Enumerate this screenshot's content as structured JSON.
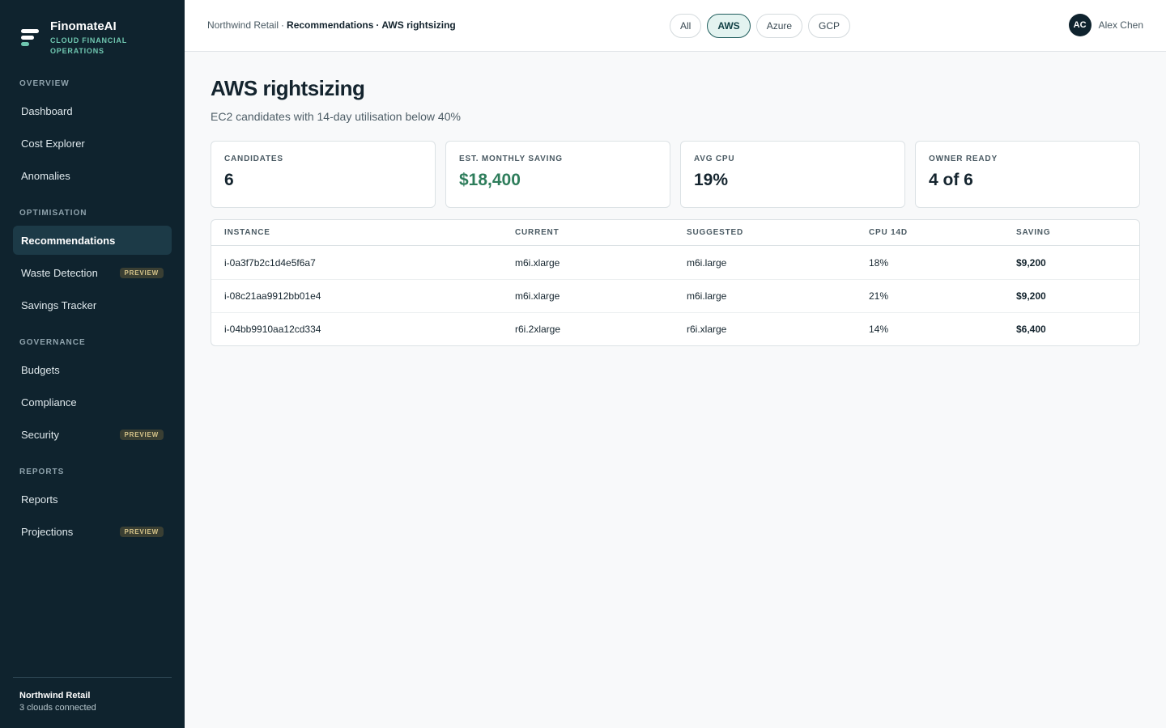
{
  "brand": {
    "name": "FinomateAI",
    "tagline": "CLOUD FINANCIAL OPERATIONS"
  },
  "nav": [
    {
      "title": "OVERVIEW",
      "items": [
        {
          "label": "Dashboard"
        },
        {
          "label": "Cost Explorer"
        },
        {
          "label": "Anomalies"
        }
      ]
    },
    {
      "title": "OPTIMISATION",
      "items": [
        {
          "label": "Recommendations",
          "active": true
        },
        {
          "label": "Waste Detection",
          "badge": "PREVIEW"
        },
        {
          "label": "Savings Tracker"
        }
      ]
    },
    {
      "title": "GOVERNANCE",
      "items": [
        {
          "label": "Budgets"
        },
        {
          "label": "Compliance"
        },
        {
          "label": "Security",
          "badge": "PREVIEW"
        }
      ]
    },
    {
      "title": "REPORTS",
      "items": [
        {
          "label": "Reports"
        },
        {
          "label": "Projections",
          "badge": "PREVIEW"
        }
      ]
    }
  ],
  "footer": {
    "org": "Northwind Retail",
    "status": "3 clouds connected"
  },
  "breadcrumb": {
    "parts": [
      "Northwind Retail",
      "Recommendations",
      "AWS rightsizing"
    ],
    "separator": "·"
  },
  "filters": [
    {
      "label": "All"
    },
    {
      "label": "AWS",
      "active": true
    },
    {
      "label": "Azure"
    },
    {
      "label": "GCP"
    }
  ],
  "user": {
    "initials": "AC",
    "name": "Alex Chen"
  },
  "page": {
    "title": "AWS rightsizing",
    "subtitle": "EC2 candidates with 14-day utilisation below 40%"
  },
  "stats": [
    {
      "label": "CANDIDATES",
      "value": "6"
    },
    {
      "label": "EST. MONTHLY SAVING",
      "value": "$18,400",
      "highlight": true
    },
    {
      "label": "AVG CPU",
      "value": "19%"
    },
    {
      "label": "OWNER READY",
      "value": "4 of 6"
    }
  ],
  "table": {
    "columns": [
      "INSTANCE",
      "CURRENT",
      "SUGGESTED",
      "CPU 14D",
      "SAVING"
    ],
    "rows": [
      [
        "i-0a3f7b2c1d4e5f6a7",
        "m6i.xlarge",
        "m6i.large",
        "18%",
        "$9,200"
      ],
      [
        "i-08c21aa9912bb01e4",
        "m6i.xlarge",
        "m6i.large",
        "21%",
        "$9,200"
      ],
      [
        "i-04bb9910aa12cd334",
        "r6i.2xlarge",
        "r6i.xlarge",
        "14%",
        "$6,400"
      ]
    ]
  }
}
